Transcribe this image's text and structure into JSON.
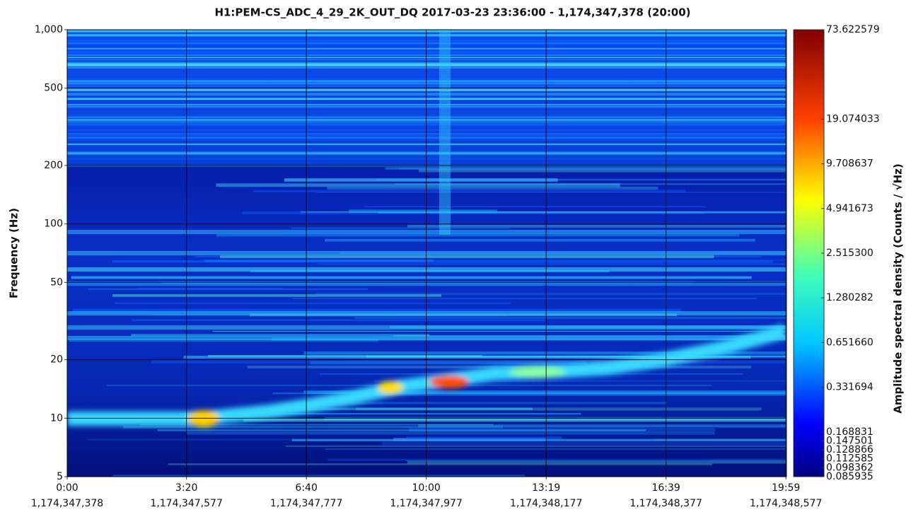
{
  "chart_data": {
    "type": "spectrogram",
    "title": "H1:PEM-CS_ADC_4_29_2K_OUT_DQ 2017-03-23 23:36:00 - 1,174,347,378 (20:00)",
    "ylabel": "Frequency (Hz)",
    "yscale": "log",
    "ylim": [
      5,
      1000
    ],
    "yticks": [
      5,
      10,
      20,
      50,
      100,
      200,
      500,
      {
        "value": 1000,
        "label": "1,000"
      }
    ],
    "xlim": [
      1174347378,
      1174348578
    ],
    "xticks": [
      {
        "value": 1174347378,
        "label": "0:00"
      },
      {
        "value": 1174347577,
        "label": "3:20"
      },
      {
        "value": 1174347777,
        "label": "6:40"
      },
      {
        "value": 1174347977,
        "label": "10:00"
      },
      {
        "value": 1174348177,
        "label": "13:19"
      },
      {
        "value": 1174348377,
        "label": "16:39"
      },
      {
        "value": 1174348577,
        "label": "19:59"
      }
    ],
    "xtick_sublabels": [
      "1,174,347,378",
      "1,174,347,577",
      "1,174,347,777",
      "1,174,347,977",
      "1,174,348,177",
      "1,174,348,377",
      "1,174,348,577"
    ],
    "grid": true,
    "colorbar_label": "Amplitude spectral density (Counts / √Hz)",
    "cscale": "log",
    "clim": [
      0.085935,
      73.622579
    ],
    "cticks": [
      73.622579,
      19.074033,
      9.708637,
      4.941673,
      {
        "value": 2.5153,
        "label": "2.515300"
      },
      1.280282,
      {
        "value": 0.65166,
        "label": "0.651660"
      },
      0.331694,
      0.168831,
      0.147501,
      0.128866,
      0.112585,
      0.098362,
      0.085935
    ]
  }
}
